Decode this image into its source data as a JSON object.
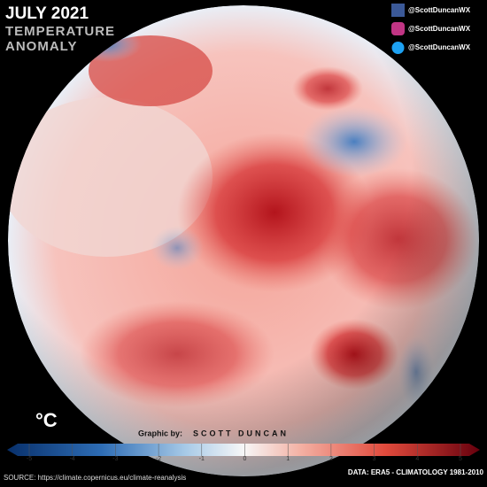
{
  "header": {
    "title": "JULY 2021",
    "subtitle_lines": [
      "TEMPERATURE",
      "ANOMALY"
    ]
  },
  "social": [
    {
      "network": "facebook",
      "handle": "@ScottDuncanWX"
    },
    {
      "network": "instagram",
      "handle": "@ScottDuncanWX"
    },
    {
      "network": "twitter",
      "handle": "@ScottDuncanWX"
    }
  ],
  "colorbar": {
    "unit": "°C",
    "ticks": [
      -5,
      -4,
      -3,
      -2,
      -1,
      0,
      1,
      2,
      3,
      4,
      5
    ]
  },
  "credit": {
    "label": "Graphic by:",
    "name": "SCOTT DUNCAN"
  },
  "footer": {
    "source": "SOURCE: https://climate.copernicus.eu/climate-reanalysis",
    "data": "DATA: ERA5 - CLIMATOLOGY 1981-2010"
  }
}
